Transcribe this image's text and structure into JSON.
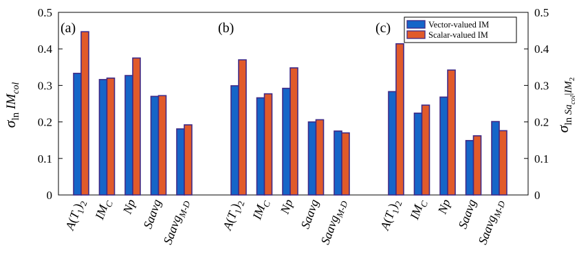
{
  "chart_data": {
    "type": "bar",
    "panels": [
      {
        "label": "(a)",
        "categories": [
          "A(T1)2",
          "IMC",
          "Np",
          "Saavg",
          "Saavg_M-D"
        ],
        "series": [
          {
            "name": "Vector-valued IM",
            "values": [
              0.333,
              0.316,
              0.327,
              0.27,
              0.181
            ]
          },
          {
            "name": "Scalar-valued IM",
            "values": [
              0.447,
              0.32,
              0.375,
              0.272,
              0.192
            ]
          }
        ]
      },
      {
        "label": "(b)",
        "categories": [
          "A(T1)2",
          "IMC",
          "Np",
          "Saavg",
          "Saavg_M-D"
        ],
        "series": [
          {
            "name": "Vector-valued IM",
            "values": [
              0.299,
              0.266,
              0.292,
              0.2,
              0.175
            ]
          },
          {
            "name": "Scalar-valued IM",
            "values": [
              0.37,
              0.277,
              0.348,
              0.206,
              0.17
            ]
          }
        ]
      },
      {
        "label": "(c)",
        "categories": [
          "A(T1)2",
          "IMC",
          "Np",
          "Saavg",
          "Saavg_M-D"
        ],
        "series": [
          {
            "name": "Vector-valued IM",
            "values": [
              0.283,
              0.224,
              0.268,
              0.149,
              0.201
            ]
          },
          {
            "name": "Scalar-valued IM",
            "values": [
              0.414,
              0.246,
              0.342,
              0.162,
              0.176
            ]
          }
        ]
      }
    ],
    "ylim": [
      0,
      0.5
    ],
    "yticks": [
      "0",
      "0.1",
      "0.2",
      "0.3",
      "0.4",
      "0.5"
    ],
    "ylabel_left": "σ ln IM col",
    "ylabel_right": "σ ln Sa col | IM 2",
    "legend": {
      "placement": "top-right",
      "entries": [
        "Vector-valued IM",
        "Scalar-valued IM"
      ]
    },
    "colors": {
      "vector": "#1565c8",
      "scalar": "#e15a2a",
      "edge": "#3f2a86"
    },
    "grid": false
  }
}
